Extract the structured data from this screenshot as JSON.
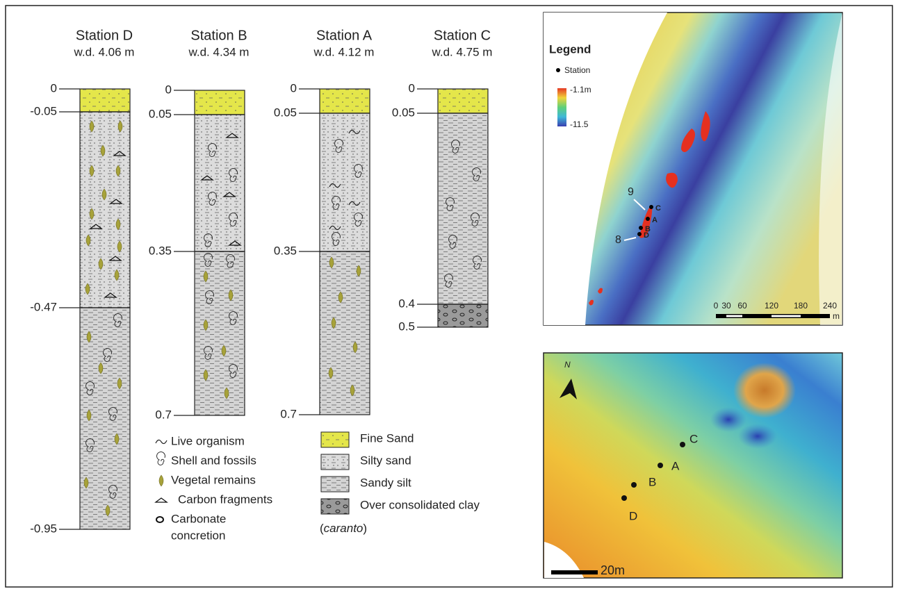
{
  "stations": [
    {
      "name": "Station D",
      "water_depth": "w.d. 4.06 m",
      "depths": [
        "0",
        "-0.05",
        "-0.47",
        "-0.95"
      ]
    },
    {
      "name": "Station B",
      "water_depth": "w.d. 4.34 m",
      "depths": [
        "0",
        "0.05",
        "0.35",
        "0.7"
      ]
    },
    {
      "name": "Station A",
      "water_depth": "w.d. 4.12 m",
      "depths": [
        "0",
        "0.05",
        "0.35",
        "0.7"
      ]
    },
    {
      "name": "Station C",
      "water_depth": "w.d. 4.75 m",
      "depths": [
        "0",
        "0.05",
        "0.4",
        "0.5"
      ]
    }
  ],
  "symbol_legend": [
    [
      "Live organism"
    ],
    [
      "Shell and fossils"
    ],
    [
      "Vegetal remains"
    ],
    [
      "Carbon fragments"
    ],
    [
      "Carbonate",
      "concretion"
    ]
  ],
  "lithology_legend": {
    "items": [
      "Fine Sand",
      "Silty  sand",
      "Sandy silt",
      "Over consolidated clay"
    ],
    "note_parts": [
      "(",
      "caranto",
      ")"
    ]
  },
  "map_top": {
    "legend_title": "Legend",
    "station_label": "Station",
    "scale_max": "-1.1m",
    "scale_min": "-11.5",
    "scale_ticks": [
      "0",
      "30",
      "60",
      "120",
      "180",
      "240"
    ],
    "scale_unit": "m",
    "stations": [
      "C",
      "A",
      "B",
      "D"
    ],
    "markers": [
      "9",
      "8"
    ]
  },
  "map_bottom": {
    "north": "N",
    "stations": [
      "C",
      "A",
      "B",
      "D"
    ],
    "scale": "20m"
  }
}
